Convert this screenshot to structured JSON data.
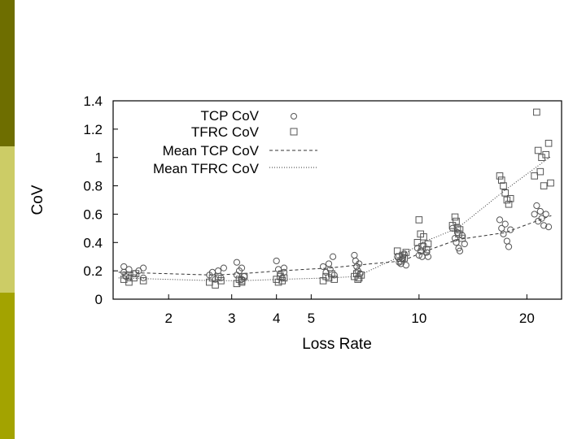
{
  "slide": {
    "bar_colors": [
      "#6e6e00",
      "#cccc66",
      "#a3a300"
    ]
  },
  "chart_data": {
    "type": "scatter",
    "xscale": "log",
    "xlabel": "Loss Rate",
    "ylabel": "CoV",
    "xlim": [
      1.4,
      25
    ],
    "ylim": [
      0,
      1.4
    ],
    "x_ticks": [
      2,
      3,
      4,
      5,
      10,
      20
    ],
    "y_ticks": [
      0,
      0.2,
      0.4,
      0.6,
      0.8,
      1,
      1.2,
      1.4
    ],
    "y_tick_labels": [
      "0",
      "0.2",
      "0.4",
      "0.6",
      "0.8",
      "1",
      "1.2",
      "1.4"
    ],
    "legend_position": "top-left",
    "legend": {
      "tcp": "TCP CoV",
      "tfrc": "TFRC CoV",
      "mean_tcp": "Mean TCP CoV",
      "mean_tfrc": "Mean TFRC CoV"
    },
    "series": [
      {
        "name": "TCP CoV",
        "marker": "circle",
        "points": [
          [
            1.5,
            0.23
          ],
          [
            1.5,
            0.19
          ],
          [
            1.52,
            0.16
          ],
          [
            1.55,
            0.21
          ],
          [
            1.55,
            0.15
          ],
          [
            1.6,
            0.18
          ],
          [
            1.65,
            0.2
          ],
          [
            1.7,
            0.22
          ],
          [
            1.7,
            0.15
          ],
          [
            2.6,
            0.17
          ],
          [
            2.65,
            0.19
          ],
          [
            2.7,
            0.14
          ],
          [
            2.75,
            0.2
          ],
          [
            2.8,
            0.15
          ],
          [
            2.85,
            0.22
          ],
          [
            3.1,
            0.26
          ],
          [
            3.15,
            0.2
          ],
          [
            3.1,
            0.17
          ],
          [
            3.2,
            0.14
          ],
          [
            3.2,
            0.22
          ],
          [
            3.25,
            0.16
          ],
          [
            4.0,
            0.27
          ],
          [
            4.05,
            0.21
          ],
          [
            4.1,
            0.18
          ],
          [
            4.15,
            0.15
          ],
          [
            4.2,
            0.22
          ],
          [
            4.2,
            0.19
          ],
          [
            5.4,
            0.23
          ],
          [
            5.5,
            0.19
          ],
          [
            5.6,
            0.25
          ],
          [
            5.65,
            0.21
          ],
          [
            5.75,
            0.3
          ],
          [
            5.8,
            0.17
          ],
          [
            6.6,
            0.31
          ],
          [
            6.65,
            0.27
          ],
          [
            6.7,
            0.23
          ],
          [
            6.75,
            0.2
          ],
          [
            6.8,
            0.25
          ],
          [
            6.85,
            0.18
          ],
          [
            8.7,
            0.3
          ],
          [
            8.8,
            0.26
          ],
          [
            8.9,
            0.25
          ],
          [
            9.0,
            0.28
          ],
          [
            9.1,
            0.32
          ],
          [
            9.2,
            0.24
          ],
          [
            9.9,
            0.36
          ],
          [
            10.0,
            0.31
          ],
          [
            10.1,
            0.34
          ],
          [
            10.2,
            0.3
          ],
          [
            10.3,
            0.38
          ],
          [
            10.5,
            0.33
          ],
          [
            10.6,
            0.3
          ],
          [
            12.4,
            0.5
          ],
          [
            12.6,
            0.43
          ],
          [
            12.7,
            0.4
          ],
          [
            12.8,
            0.47
          ],
          [
            12.9,
            0.36
          ],
          [
            13.0,
            0.34
          ],
          [
            13.2,
            0.45
          ],
          [
            13.4,
            0.39
          ],
          [
            16.8,
            0.56
          ],
          [
            17.0,
            0.5
          ],
          [
            17.2,
            0.46
          ],
          [
            17.4,
            0.53
          ],
          [
            17.6,
            0.41
          ],
          [
            17.8,
            0.37
          ],
          [
            18.0,
            0.49
          ],
          [
            21.0,
            0.6
          ],
          [
            21.3,
            0.66
          ],
          [
            21.5,
            0.55
          ],
          [
            21.8,
            0.62
          ],
          [
            22.0,
            0.57
          ],
          [
            22.3,
            0.52
          ],
          [
            22.6,
            0.6
          ],
          [
            23.0,
            0.51
          ]
        ]
      },
      {
        "name": "TFRC CoV",
        "marker": "square",
        "points": [
          [
            1.5,
            0.14
          ],
          [
            1.52,
            0.17
          ],
          [
            1.55,
            0.12
          ],
          [
            1.6,
            0.15
          ],
          [
            1.62,
            0.18
          ],
          [
            1.7,
            0.13
          ],
          [
            2.6,
            0.12
          ],
          [
            2.65,
            0.15
          ],
          [
            2.7,
            0.1
          ],
          [
            2.75,
            0.16
          ],
          [
            2.8,
            0.13
          ],
          [
            3.1,
            0.11
          ],
          [
            3.15,
            0.14
          ],
          [
            3.2,
            0.12
          ],
          [
            3.25,
            0.16
          ],
          [
            3.2,
            0.13
          ],
          [
            4.0,
            0.14
          ],
          [
            4.05,
            0.12
          ],
          [
            4.1,
            0.16
          ],
          [
            4.15,
            0.13
          ],
          [
            4.2,
            0.15
          ],
          [
            5.4,
            0.13
          ],
          [
            5.5,
            0.16
          ],
          [
            5.6,
            0.15
          ],
          [
            5.7,
            0.18
          ],
          [
            5.8,
            0.14
          ],
          [
            6.6,
            0.16
          ],
          [
            6.7,
            0.18
          ],
          [
            6.8,
            0.15
          ],
          [
            6.9,
            0.17
          ],
          [
            6.75,
            0.14
          ],
          [
            8.7,
            0.34
          ],
          [
            8.8,
            0.3
          ],
          [
            8.9,
            0.27
          ],
          [
            9.0,
            0.31
          ],
          [
            9.1,
            0.29
          ],
          [
            9.2,
            0.33
          ],
          [
            9.9,
            0.4
          ],
          [
            10.0,
            0.56
          ],
          [
            10.1,
            0.46
          ],
          [
            10.2,
            0.37
          ],
          [
            10.3,
            0.44
          ],
          [
            10.5,
            0.35
          ],
          [
            10.6,
            0.39
          ],
          [
            12.4,
            0.52
          ],
          [
            12.6,
            0.58
          ],
          [
            12.7,
            0.55
          ],
          [
            12.8,
            0.5
          ],
          [
            12.9,
            0.46
          ],
          [
            13.0,
            0.49
          ],
          [
            13.2,
            0.43
          ],
          [
            16.8,
            0.87
          ],
          [
            17.0,
            0.84
          ],
          [
            17.2,
            0.8
          ],
          [
            17.4,
            0.75
          ],
          [
            17.6,
            0.7
          ],
          [
            17.8,
            0.67
          ],
          [
            18.0,
            0.71
          ],
          [
            21.0,
            0.87
          ],
          [
            21.3,
            1.32
          ],
          [
            21.5,
            1.05
          ],
          [
            21.8,
            0.9
          ],
          [
            22.0,
            1.0
          ],
          [
            22.3,
            0.8
          ],
          [
            22.6,
            1.02
          ],
          [
            23.0,
            1.1
          ],
          [
            23.3,
            0.82
          ]
        ]
      },
      {
        "name": "Mean TCP CoV",
        "style": "dashed",
        "points": [
          [
            1.45,
            0.19
          ],
          [
            2.7,
            0.17
          ],
          [
            3.2,
            0.18
          ],
          [
            4.1,
            0.2
          ],
          [
            5.6,
            0.22
          ],
          [
            6.7,
            0.24
          ],
          [
            9.0,
            0.27
          ],
          [
            10.2,
            0.33
          ],
          [
            12.8,
            0.42
          ],
          [
            17.4,
            0.47
          ],
          [
            23.4,
            0.59
          ]
        ]
      },
      {
        "name": "Mean TFRC CoV",
        "style": "dotted",
        "points": [
          [
            1.45,
            0.15
          ],
          [
            2.7,
            0.13
          ],
          [
            3.2,
            0.13
          ],
          [
            4.1,
            0.14
          ],
          [
            5.6,
            0.15
          ],
          [
            6.7,
            0.16
          ],
          [
            9.0,
            0.31
          ],
          [
            10.2,
            0.4
          ],
          [
            12.8,
            0.5
          ],
          [
            17.4,
            0.77
          ],
          [
            23.4,
            1.01
          ]
        ]
      }
    ]
  }
}
